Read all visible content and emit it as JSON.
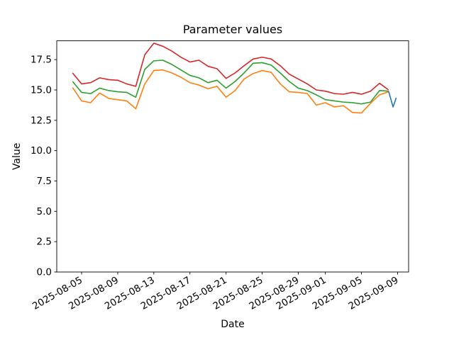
{
  "figure": {
    "title": "Parameter values",
    "xlabel": "Date",
    "ylabel": "Value"
  },
  "chart_data": {
    "type": "line",
    "title": "Parameter values",
    "xlabel": "Date",
    "ylabel": "Value",
    "grid": false,
    "legend": "none",
    "ylim": [
      0.0,
      19.05
    ],
    "xlim_dates": [
      "2025-08-02",
      "2025-09-10"
    ],
    "y_ticks": [
      "0.0",
      "2.5",
      "5.0",
      "7.5",
      "10.0",
      "12.5",
      "15.0",
      "17.5"
    ],
    "x_ticks": [
      "2025-08-05",
      "2025-08-09",
      "2025-08-13",
      "2025-08-17",
      "2025-08-21",
      "2025-08-25",
      "2025-08-29",
      "2025-09-01",
      "2025-09-05",
      "2025-09-09"
    ],
    "dates": [
      "2025-08-04",
      "2025-08-05",
      "2025-08-06",
      "2025-08-07",
      "2025-08-08",
      "2025-08-09",
      "2025-08-10",
      "2025-08-11",
      "2025-08-12",
      "2025-08-13",
      "2025-08-14",
      "2025-08-15",
      "2025-08-16",
      "2025-08-17",
      "2025-08-18",
      "2025-08-19",
      "2025-08-20",
      "2025-08-21",
      "2025-08-22",
      "2025-08-23",
      "2025-08-24",
      "2025-08-25",
      "2025-08-26",
      "2025-08-27",
      "2025-08-28",
      "2025-08-29",
      "2025-08-30",
      "2025-08-31",
      "2025-09-01",
      "2025-09-02",
      "2025-09-03",
      "2025-09-04",
      "2025-09-05",
      "2025-09-06",
      "2025-09-07",
      "2025-09-08"
    ],
    "series": [
      {
        "name": "red-line",
        "color": "#d62728",
        "values": [
          16.4,
          15.5,
          15.6,
          16.0,
          15.85,
          15.8,
          15.5,
          15.3,
          17.9,
          18.85,
          18.6,
          18.2,
          17.7,
          17.3,
          17.45,
          16.95,
          16.75,
          15.95,
          16.4,
          17.0,
          17.55,
          17.7,
          17.55,
          17.0,
          16.3,
          15.9,
          15.5,
          15.0,
          14.9,
          14.7,
          14.65,
          14.8,
          14.65,
          14.9,
          15.55,
          15.0
        ]
      },
      {
        "name": "green-line",
        "color": "#2ca02c",
        "values": [
          15.7,
          14.8,
          14.7,
          15.15,
          14.95,
          14.85,
          14.8,
          14.4,
          16.7,
          17.4,
          17.45,
          17.1,
          16.65,
          16.2,
          16.0,
          15.6,
          15.8,
          15.15,
          15.7,
          16.4,
          17.2,
          17.25,
          17.05,
          16.4,
          15.7,
          15.15,
          14.95,
          14.6,
          14.2,
          14.1,
          14.0,
          13.95,
          13.85,
          14.0,
          14.95,
          14.9
        ]
      },
      {
        "name": "orange-line",
        "color": "#ff7f0e",
        "values": [
          15.2,
          14.1,
          13.95,
          14.75,
          14.3,
          14.2,
          14.1,
          13.45,
          15.5,
          16.6,
          16.65,
          16.4,
          16.05,
          15.6,
          15.4,
          15.1,
          15.3,
          14.4,
          14.95,
          15.9,
          16.35,
          16.6,
          16.45,
          15.5,
          14.85,
          14.8,
          14.7,
          13.75,
          13.95,
          13.6,
          13.7,
          13.15,
          13.1,
          13.9,
          14.6,
          14.85
        ]
      },
      {
        "name": "blue-line",
        "color": "#1f77b4",
        "x_day_offsets": [
          35.0,
          35.5,
          35.85
        ],
        "values": [
          14.9,
          13.6,
          14.35
        ]
      }
    ]
  }
}
